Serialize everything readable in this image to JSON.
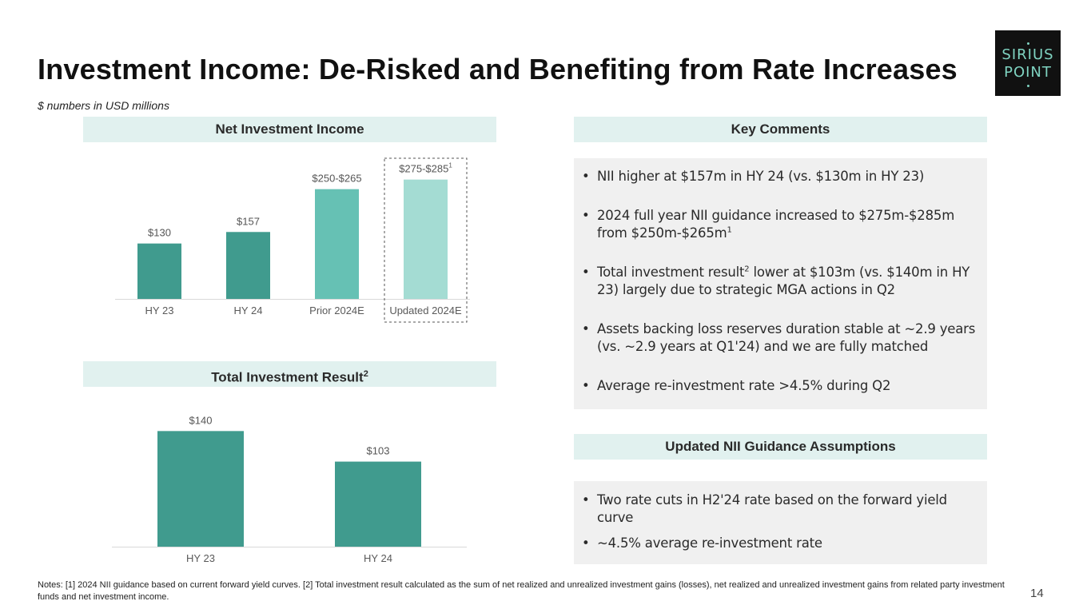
{
  "title": "Investment Income: De-Risked and Benefiting from Rate Increases",
  "subtitle": "$ numbers in USD millions",
  "logo": {
    "line1": "SIRIUS",
    "line2": "POINT"
  },
  "nii_section": {
    "label": "Net Investment Income"
  },
  "tir_section": {
    "label": "Total Investment Result",
    "superscript": "2"
  },
  "key_comments": {
    "label": "Key Comments",
    "bullets": [
      {
        "text": "NII higher at $157m in HY 24 (vs. $130m in HY 23)"
      },
      {
        "text_a": "2024 full year NII guidance increased to $275m-$285m from $250m-$265m",
        "sup": "1"
      },
      {
        "text_a": "Total investment result",
        "sup": "2",
        "text_b": " lower at $103m (vs. $140m in HY 23) largely due to strategic MGA actions in Q2"
      },
      {
        "text": "Assets backing loss reserves duration stable at ~2.9 years (vs. ~2.9 years at Q1'24) and we are fully matched"
      },
      {
        "text": "Average re-investment rate >4.5% during Q2"
      }
    ]
  },
  "guidance": {
    "label": "Updated NII Guidance Assumptions",
    "bullets": [
      {
        "text": "Two rate cuts in H2'24 rate based on the forward yield curve"
      },
      {
        "text": "~4.5% average re-investment rate"
      }
    ]
  },
  "bullet_char": "•",
  "notes": "Notes: [1] 2024 NII guidance based on current forward yield curves. [2] Total investment result calculated as the sum of net realized and unrealized investment gains (losses), net realized and unrealized investment gains from related party investment funds and net investment income.",
  "page_number": "14",
  "colors": {
    "dark_teal": "#409b8e",
    "mid_teal": "#66c1b4",
    "light_teal": "#a4dcd3",
    "band": "#e1f1ef"
  },
  "chart_data": [
    {
      "type": "bar",
      "title": "Net Investment Income",
      "categories": [
        "HY 23",
        "HY 24",
        "Prior 2024E",
        "Updated 2024E"
      ],
      "values": [
        130,
        157,
        257.5,
        280
      ],
      "data_labels": [
        "$130",
        "$157",
        "$250-$265",
        "$275-$285"
      ],
      "label_superscripts": [
        "",
        "",
        "",
        "1"
      ],
      "colors": [
        "#409b8e",
        "#409b8e",
        "#66c1b4",
        "#a4dcd3"
      ],
      "ylim": [
        0,
        300
      ],
      "highlight_box": "Updated 2024E"
    },
    {
      "type": "bar",
      "title": "Total Investment Result",
      "categories": [
        "HY 23",
        "HY 24"
      ],
      "values": [
        140,
        103
      ],
      "data_labels": [
        "$140",
        "$103"
      ],
      "colors": [
        "#409b8e",
        "#409b8e"
      ],
      "ylim": [
        0,
        150
      ]
    }
  ]
}
